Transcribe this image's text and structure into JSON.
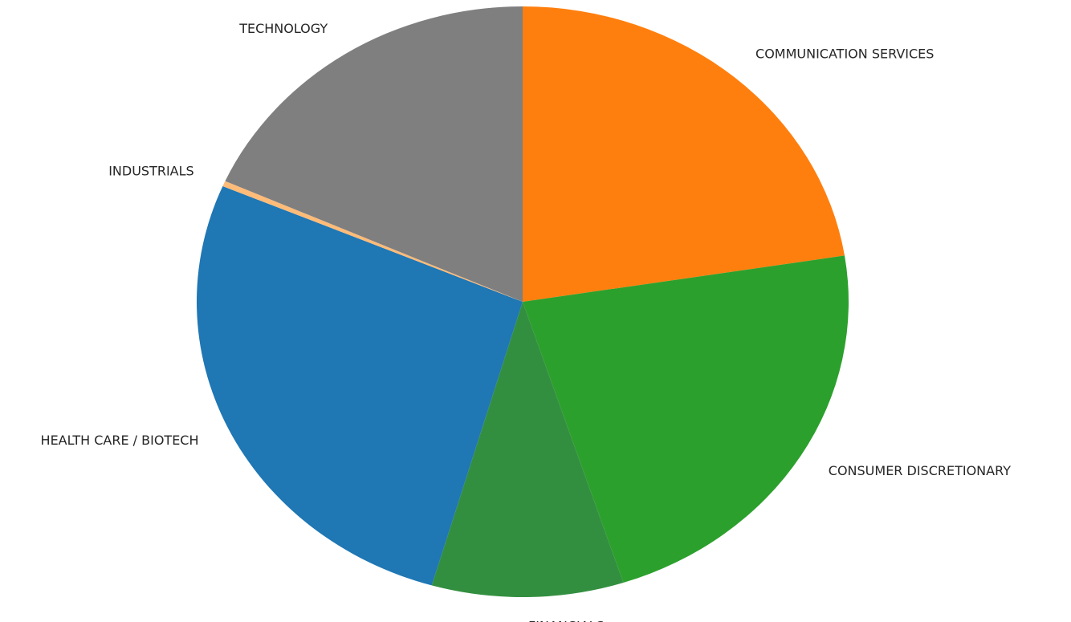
{
  "chart_data": {
    "type": "pie",
    "categories": [
      "COMMUNICATION SERVICES",
      "CONSUMER DISCRETIONARY",
      "FINANCIALS",
      "HEALTH CARE / BIOTECH",
      "INDUSTRIALS",
      "TECHNOLOGY"
    ],
    "values": [
      22.5,
      22.5,
      9.5,
      26.9,
      0.3,
      18.3
    ],
    "colors": [
      "#ff7f0e",
      "#2ca02c",
      "#338f40",
      "#1f77b4",
      "#ffbb78",
      "#7f7f7f"
    ]
  }
}
